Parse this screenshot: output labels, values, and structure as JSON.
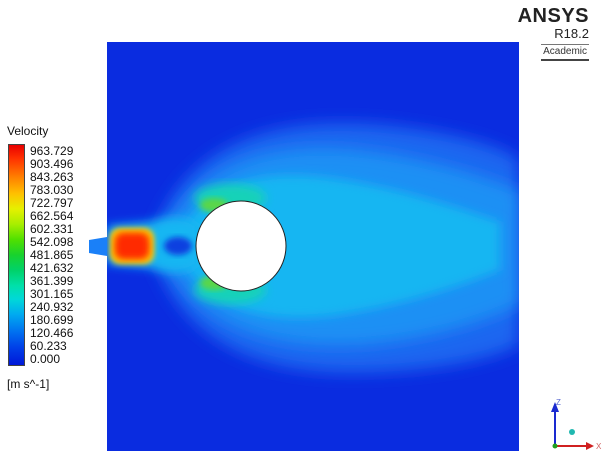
{
  "brand": {
    "name": "ANSYS",
    "version": "R18.2",
    "license": "Academic"
  },
  "legend": {
    "title": "Velocity",
    "ticks": [
      "963.729",
      "903.496",
      "843.263",
      "783.030",
      "722.797",
      "662.564",
      "602.331",
      "542.098",
      "481.865",
      "421.632",
      "361.399",
      "301.165",
      "240.932",
      "180.699",
      "120.466",
      "60.233",
      "0.000"
    ],
    "units": "[m s^-1]"
  },
  "axes": {
    "z": "Z",
    "x": "X"
  },
  "colors": {
    "background_field": "#0a2ce0",
    "jet_core": "#ff2000",
    "cylinder": "#ffffff"
  }
}
